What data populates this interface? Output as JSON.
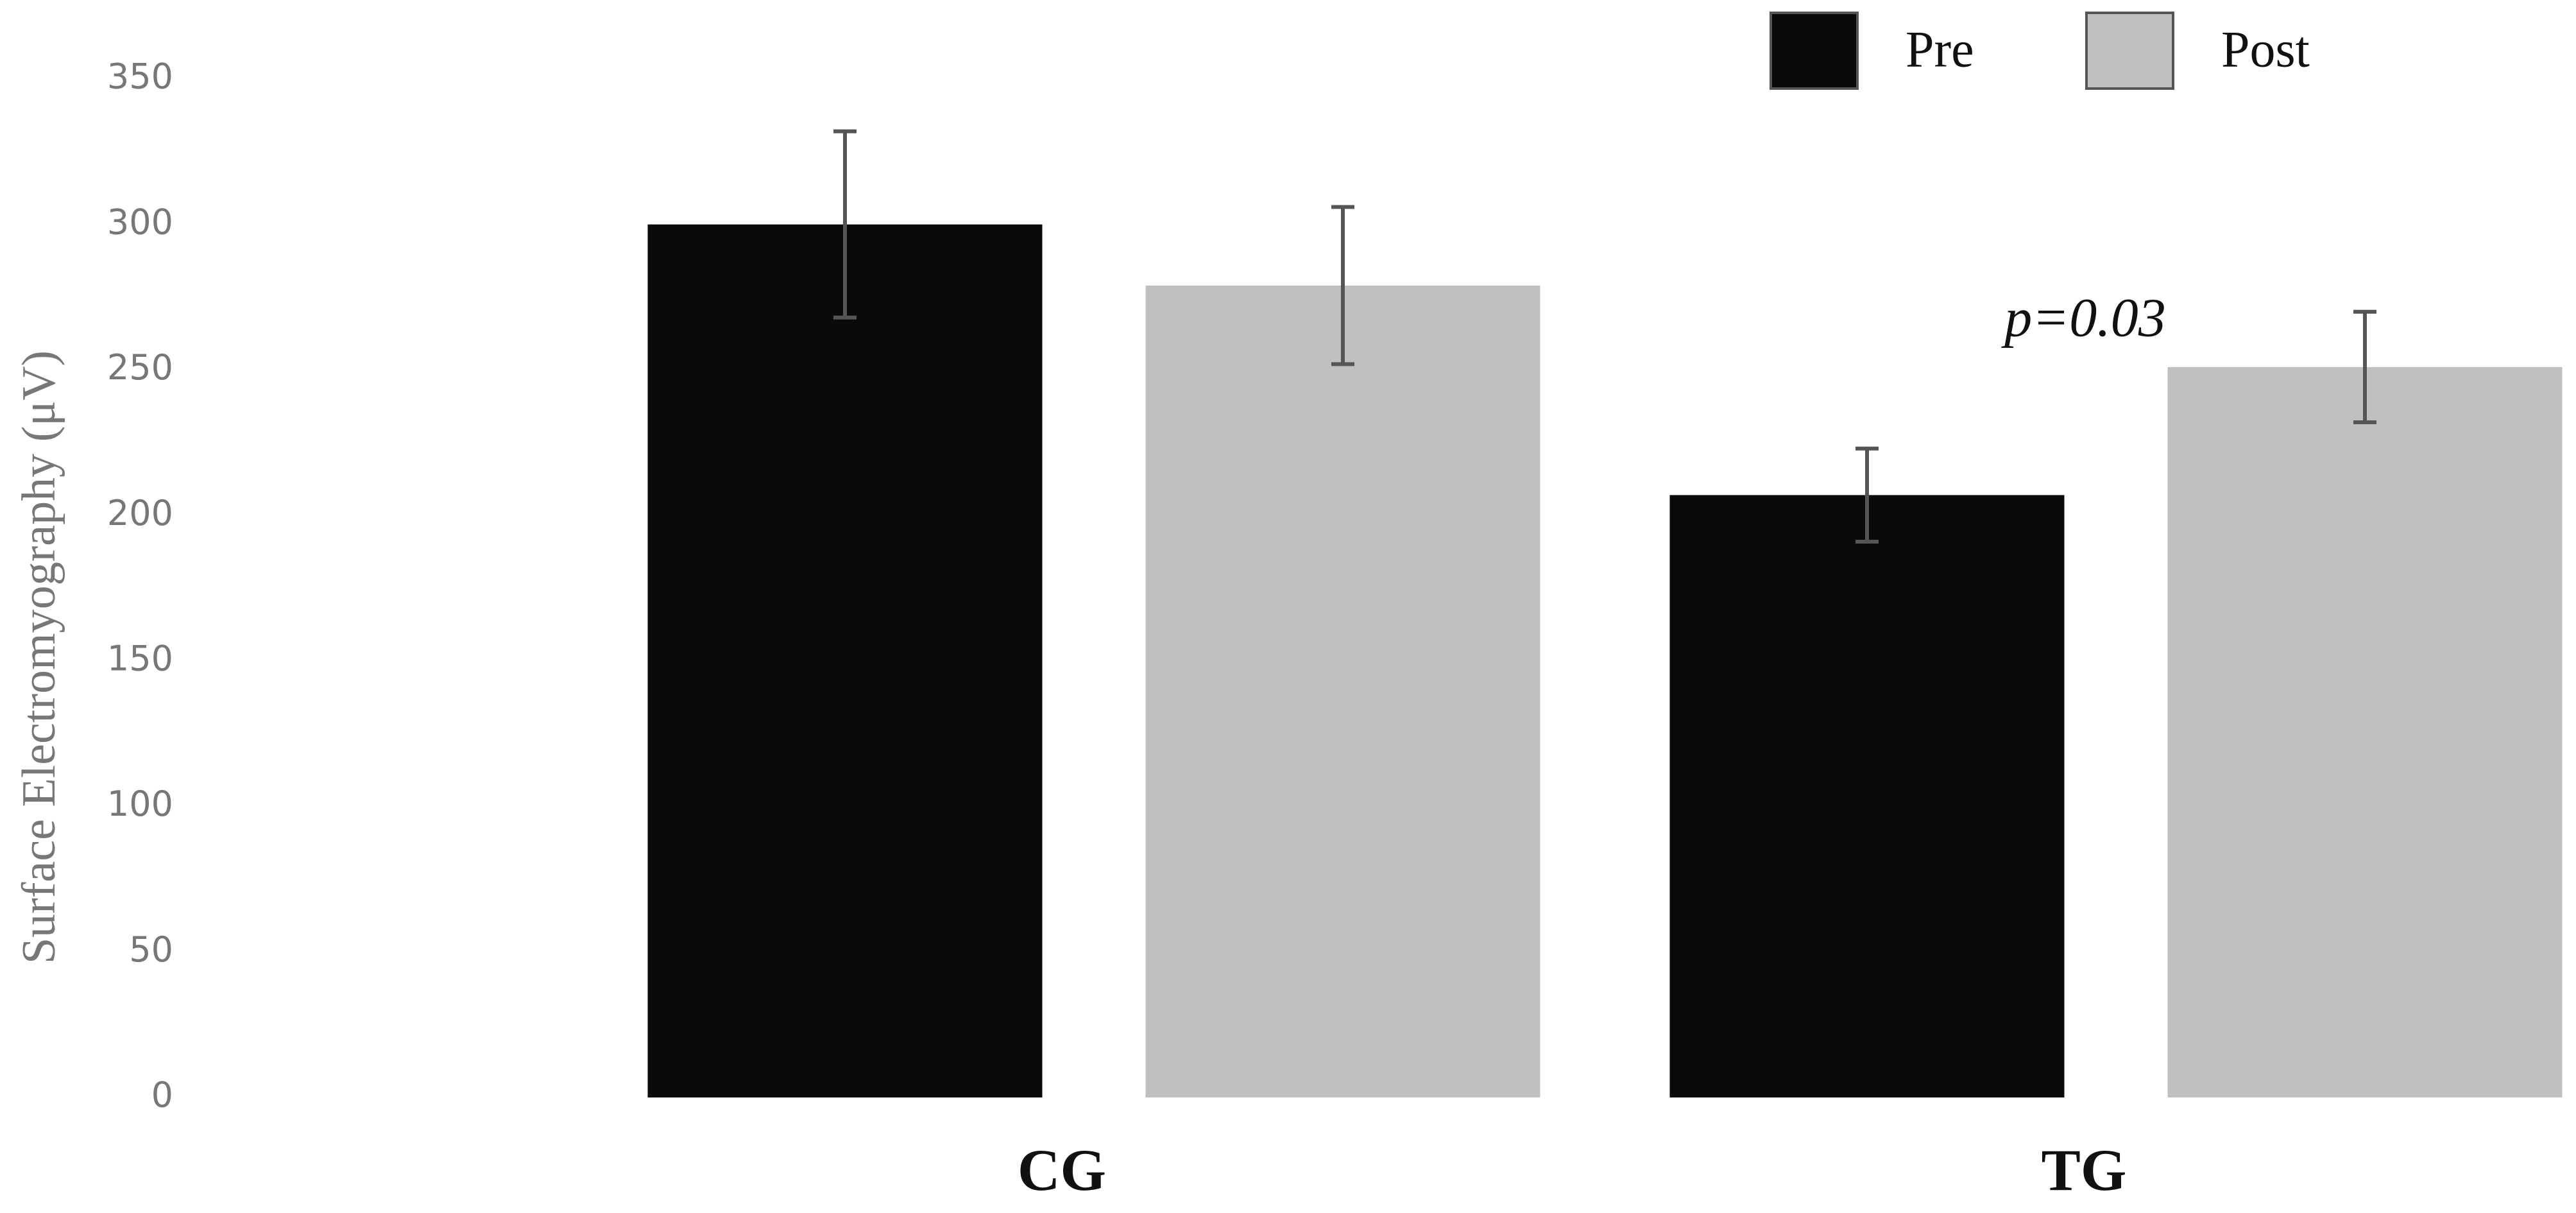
{
  "chart_data": {
    "type": "bar",
    "y_label": "Surface Electromyography (μV)",
    "annotation": "p=0.03",
    "categories": [
      "CG",
      "TG"
    ],
    "series": [
      {
        "name": "Pre",
        "color": "#0a0a0a",
        "values": [
          300,
          207
        ],
        "errors": [
          32,
          16
        ]
      },
      {
        "name": "Post",
        "color": "#c0c0c0",
        "values": [
          279,
          251
        ],
        "errors": [
          27,
          19
        ]
      }
    ],
    "ylim": [
      0,
      350
    ],
    "yticks": [
      0,
      50,
      100,
      150,
      200,
      250,
      300,
      350
    ],
    "grid": false,
    "legend": "top"
  }
}
